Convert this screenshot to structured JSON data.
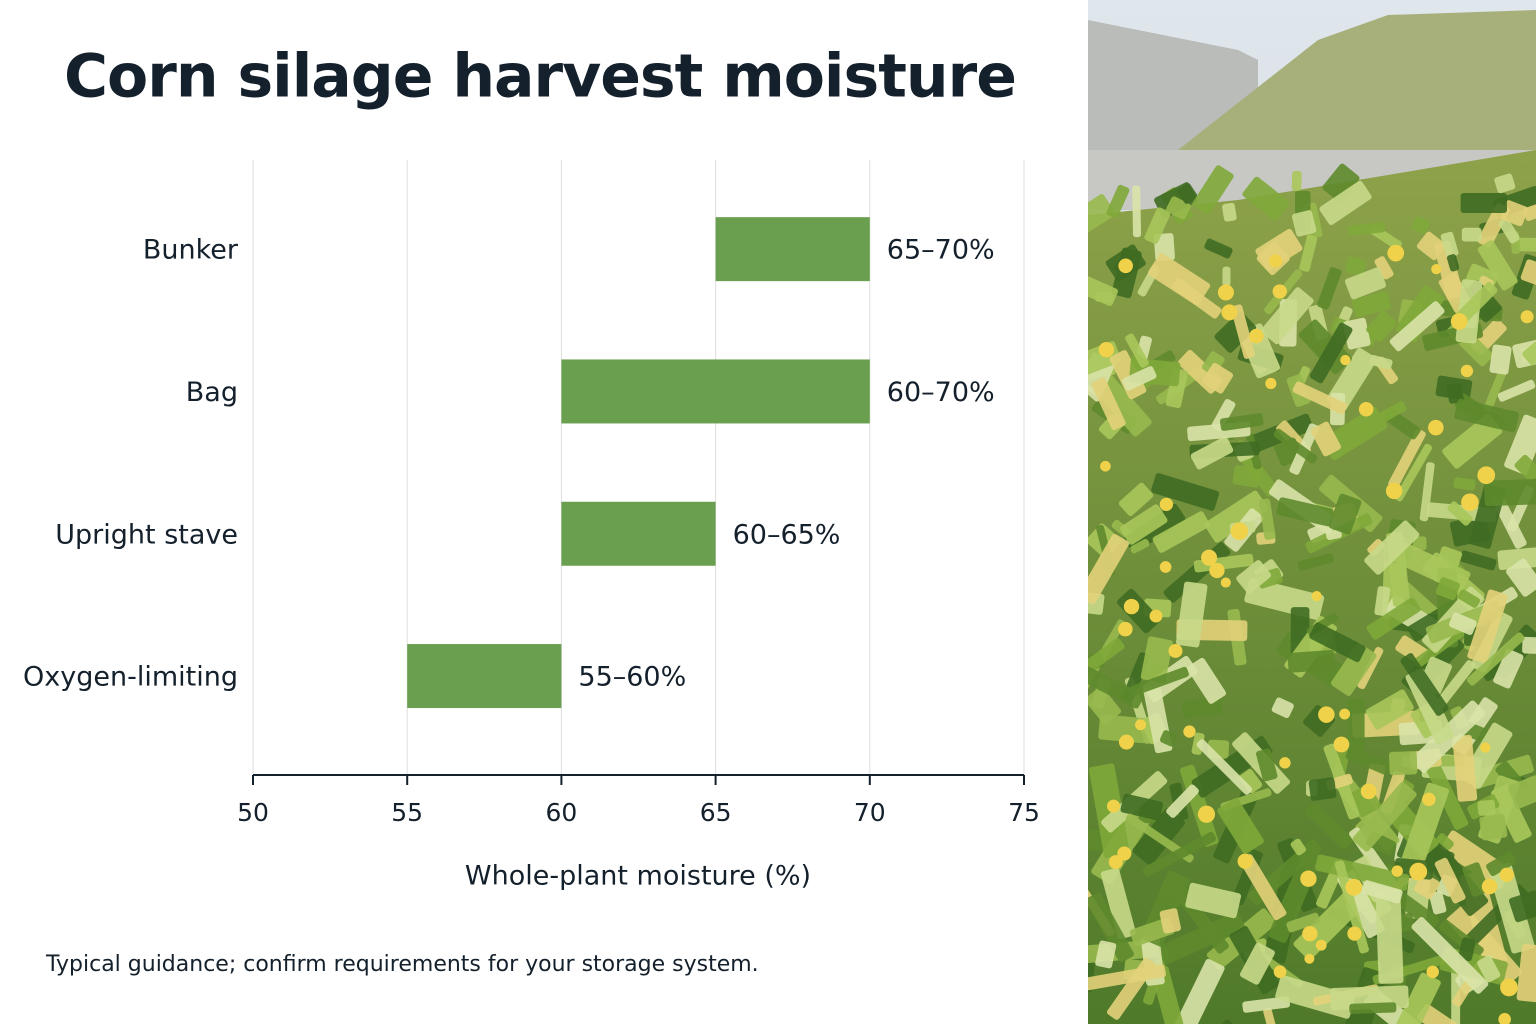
{
  "chart_data": {
    "type": "range-bar",
    "title": "Corn silage harvest moisture",
    "categories": [
      "Bunker",
      "Bag",
      "Upright stave",
      "Oxygen-limiting"
    ],
    "low": [
      65,
      60,
      60,
      55
    ],
    "high": [
      70,
      70,
      65,
      60
    ],
    "value_labels": [
      "65–70%",
      "60–70%",
      "60–65%",
      "55–60%"
    ],
    "color": "#6a9f4f",
    "xlim": [
      50,
      75
    ],
    "xticks": [
      50,
      55,
      60,
      65,
      70,
      75
    ],
    "xlabel": "Whole-plant moisture (%)",
    "grid": true,
    "note": "Typical guidance; confirm requirements for your storage system."
  }
}
